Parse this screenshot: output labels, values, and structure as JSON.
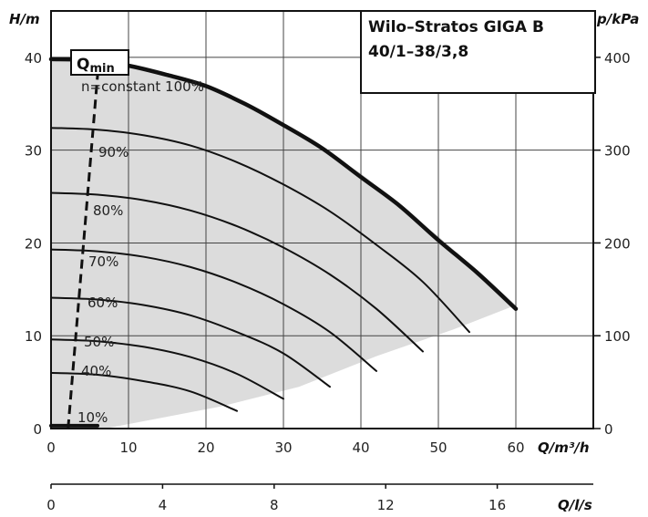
{
  "chart_data": {
    "type": "line",
    "title_lines": [
      "Wilo–Stratos GIGA B",
      "40/1–38/3,8"
    ],
    "xlabel": "Q/m³/h",
    "ylabel": "H/m",
    "y2label": "p/kPa",
    "x2label": "Q/l/s",
    "xlim": [
      0,
      70
    ],
    "ylim": [
      0,
      45
    ],
    "x_ticks": [
      0,
      10,
      20,
      30,
      40,
      50,
      60
    ],
    "y_ticks": [
      0,
      10,
      20,
      30,
      40
    ],
    "y2_ticks": [
      0,
      100,
      200,
      300,
      400
    ],
    "x2_ticks": [
      0,
      4,
      8,
      12,
      16
    ],
    "grid": true,
    "qmin_label": "Q",
    "qmin_sub": "min",
    "qmin_line": {
      "x": [
        2.2,
        6.2
      ],
      "y": [
        0,
        40
      ]
    },
    "operating_region": [
      [
        0,
        40
      ],
      [
        5,
        39.9
      ],
      [
        12,
        39
      ],
      [
        20,
        37
      ],
      [
        30,
        32.7
      ],
      [
        40,
        27.5
      ],
      [
        50,
        20.7
      ],
      [
        60,
        13.3
      ],
      [
        52,
        10.7
      ],
      [
        42,
        7.8
      ],
      [
        32,
        4.5
      ],
      [
        22,
        2.4
      ],
      [
        12,
        0.8
      ],
      [
        7,
        0
      ],
      [
        0,
        0
      ]
    ],
    "series": [
      {
        "name": "n=constant 100%",
        "x": [
          0,
          5,
          10,
          15,
          20,
          25,
          30,
          35,
          40,
          45,
          50,
          55,
          60
        ],
        "y": [
          39.8,
          39.7,
          39.1,
          38.1,
          36.9,
          35.0,
          32.7,
          30.2,
          27.1,
          24.0,
          20.3,
          16.8,
          12.9
        ]
      },
      {
        "name": "90%",
        "x": [
          0,
          6,
          12,
          18,
          24,
          30,
          36,
          42,
          48,
          54
        ],
        "y": [
          32.4,
          32.2,
          31.6,
          30.5,
          28.7,
          26.3,
          23.4,
          19.8,
          15.8,
          10.4
        ]
      },
      {
        "name": "80%",
        "x": [
          0,
          6,
          12,
          18,
          24,
          30,
          36,
          42,
          48
        ],
        "y": [
          25.4,
          25.2,
          24.6,
          23.5,
          21.8,
          19.5,
          16.6,
          12.9,
          8.3
        ]
      },
      {
        "name": "70%",
        "x": [
          0,
          6,
          12,
          18,
          24,
          30,
          36,
          42
        ],
        "y": [
          19.3,
          19.1,
          18.5,
          17.4,
          15.7,
          13.4,
          10.4,
          6.2
        ]
      },
      {
        "name": "60%",
        "x": [
          0,
          6,
          12,
          18,
          24,
          30,
          36
        ],
        "y": [
          14.1,
          13.9,
          13.3,
          12.2,
          10.4,
          8.1,
          4.5
        ]
      },
      {
        "name": "50%",
        "x": [
          0,
          6,
          12,
          18,
          24,
          30
        ],
        "y": [
          9.6,
          9.4,
          8.8,
          7.7,
          5.9,
          3.2
        ]
      },
      {
        "name": "40%",
        "x": [
          0,
          6,
          12,
          18,
          24
        ],
        "y": [
          6.0,
          5.8,
          5.1,
          4.0,
          1.9
        ]
      },
      {
        "name": "10%",
        "x": [
          0,
          2,
          4,
          6
        ],
        "y": [
          0.3,
          0.3,
          0.3,
          0.3
        ]
      }
    ]
  }
}
